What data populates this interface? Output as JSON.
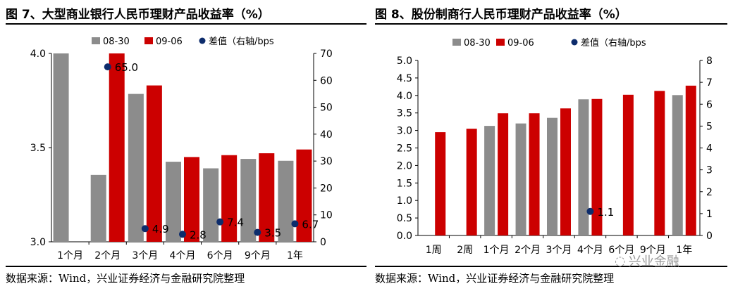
{
  "figures": [
    {
      "title": "图 7、大型商业银行人民币理财产品收益率（%）",
      "source": "数据来源：Wind，兴业证券经济与金融研究院整理"
    },
    {
      "title": "图 8、股份制商行人民币理财产品收益率（%）",
      "source": "数据来源：Wind，兴业证券经济与金融研究院整理"
    }
  ],
  "watermark": "兴业金融",
  "colors": {
    "s1": "#8c8c8c",
    "s2": "#cc0000",
    "diff": "#0d2c6c"
  },
  "chart_data": [
    {
      "type": "bar",
      "categories": [
        "1个月",
        "2个月",
        "3个月",
        "4个月",
        "6个月",
        "9个月",
        "1年"
      ],
      "series": [
        {
          "name": "08-30",
          "values": [
            4.0,
            3.355,
            3.785,
            3.425,
            3.39,
            3.44,
            3.43
          ]
        },
        {
          "name": "09-06",
          "values": [
            null,
            4.0,
            3.83,
            3.45,
            3.46,
            3.47,
            3.49
          ]
        }
      ],
      "diff_series": {
        "name": "差值（右轴/bps",
        "values": [
          null,
          65.0,
          4.9,
          2.8,
          7.4,
          3.5,
          6.7
        ],
        "labels": [
          "",
          "65.0",
          "4.9",
          "2.8",
          "7.4",
          "3.5",
          "6.7"
        ]
      },
      "ylim": [
        3.0,
        4.0
      ],
      "yticks": [
        "3.0",
        "3.5",
        "4.0"
      ],
      "y2lim": [
        0,
        70
      ],
      "y2ticks": [
        "0",
        "10",
        "20",
        "30",
        "40",
        "50",
        "60",
        "70"
      ],
      "legend": "top"
    },
    {
      "type": "bar",
      "categories": [
        "1周",
        "2周",
        "1个月",
        "2个月",
        "3个月",
        "4个月",
        "6个月",
        "9个月",
        "1年"
      ],
      "series": [
        {
          "name": "08-30",
          "values": [
            null,
            null,
            3.13,
            3.2,
            3.36,
            3.89,
            null,
            null,
            4.01
          ]
        },
        {
          "name": "09-06",
          "values": [
            2.95,
            3.05,
            3.49,
            3.49,
            3.63,
            3.9,
            4.02,
            4.13,
            4.28
          ]
        }
      ],
      "diff_series": {
        "name": "差值（右轴/bps",
        "values": [
          null,
          null,
          null,
          null,
          null,
          1.1,
          null,
          null,
          null
        ],
        "labels": [
          "",
          "",
          "",
          "",
          "",
          "1.1",
          "",
          "",
          ""
        ]
      },
      "ylim": [
        0.0,
        5.0
      ],
      "yticks": [
        "0.0",
        "0.5",
        "1.0",
        "1.5",
        "2.0",
        "2.5",
        "3.0",
        "3.5",
        "4.0",
        "4.5",
        "5.0"
      ],
      "y2lim": [
        0,
        8
      ],
      "y2ticks": [
        "0",
        "1",
        "2",
        "3",
        "4",
        "5",
        "6",
        "7",
        "8"
      ],
      "legend": "top"
    }
  ]
}
